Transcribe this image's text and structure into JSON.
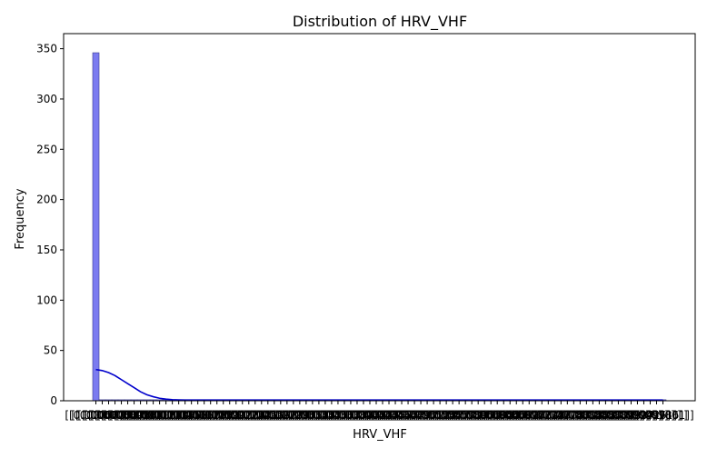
{
  "chart_data": {
    "type": "bar",
    "title": "Distribution of HRV_VHF",
    "xlabel": "HRV_VHF",
    "ylabel": "Frequency",
    "ylim": [
      0,
      365
    ],
    "yticks": [
      0,
      50,
      100,
      150,
      200,
      250,
      300,
      350
    ],
    "categories": [
      "[[0.00066]]",
      "[[0.00071]]",
      "[[0.00075]]",
      "[[0.00082]]",
      "[[0.00087]]",
      "[[0.00092]]",
      "[[0.00098]]",
      "[[0.00104]]",
      "[[0.00111]]",
      "[[0.00118]]",
      "[[0.00124]]",
      "[[0.00131]]",
      "[[0.00139]]",
      "[[0.00145]]",
      "[[0.00152]]",
      "[[0.00160]]",
      "[[0.00167]]",
      "[[0.00175]]",
      "[[0.00183]]",
      "[[0.00191]]",
      "[[0.00199]]",
      "[[0.00207]]",
      "[[0.00216]]",
      "[[0.00224]]",
      "[[0.00233]]",
      "[[0.00241]]",
      "[[0.00250]]",
      "[[0.00259]]",
      "[[0.00268]]",
      "[[0.00277]]",
      "[[0.00286]]",
      "[[0.00295]]",
      "[[0.00305]]",
      "[[0.00314]]",
      "[[0.00324]]",
      "[[0.00333]]",
      "[[0.00343]]",
      "[[0.00353]]",
      "[[0.00363]]",
      "[[0.00373]]",
      "[[0.00383]]",
      "[[0.00393]]",
      "[[0.00404]]",
      "[[0.00414]]",
      "[[0.00425]]",
      "[[0.00435]]",
      "[[0.00446]]",
      "[[0.00457]]",
      "[[0.00468]]",
      "[[0.00479]]",
      "[[0.00490]]",
      "[[0.00501]]",
      "[[0.00513]]",
      "[[0.00524]]",
      "[[0.00536]]",
      "[[0.00547]]",
      "[[0.00559]]",
      "[[0.00571]]",
      "[[0.00583]]",
      "[[0.00595]]",
      "[[0.00607]]",
      "[[0.00619]]",
      "[[0.00632]]",
      "[[0.00644]]",
      "[[0.00657]]",
      "[[0.00669]]",
      "[[0.00682]]",
      "[[0.00695]]",
      "[[0.00708]]",
      "[[0.00721]]",
      "[[0.00734]]",
      "[[0.00747]]",
      "[[0.00760]]",
      "[[0.00774]]",
      "[[0.00787]]",
      "[[0.00801]]",
      "[[0.00814]]",
      "[[0.00828]]",
      "[[0.00842]]",
      "[[0.00856]]",
      "[[0.00870]]",
      "[[0.00884]]",
      "[[0.00898]]",
      "[[0.00913]]",
      "[[0.00927]]",
      "[[0.00942]]",
      "[[0.00956]]",
      "[[0.00971]]",
      "[[0.00986]]",
      "[[0.01001]]"
    ],
    "series": [
      {
        "values": [
          346,
          1,
          1,
          1,
          1,
          1,
          1,
          1,
          1,
          1,
          1,
          1,
          1,
          1,
          1,
          1,
          1,
          1,
          1,
          1,
          1,
          1,
          1,
          1,
          1,
          1,
          1,
          1,
          1,
          1,
          1,
          1,
          1,
          1,
          1,
          1,
          1,
          1,
          1,
          1,
          1,
          1,
          1,
          1,
          1,
          1,
          1,
          1,
          1,
          1,
          1,
          1,
          1,
          1,
          1,
          1,
          1,
          1,
          1,
          1,
          1,
          1,
          1,
          1,
          1,
          1,
          1,
          1,
          1,
          1,
          1,
          1,
          1,
          1,
          1,
          1,
          1,
          1,
          1,
          1,
          1,
          1,
          1,
          1,
          1,
          1,
          1,
          1,
          1,
          1
        ]
      }
    ],
    "kde": [
      31,
      30,
      28,
      25,
      21,
      17,
      13,
      9,
      6,
      4,
      2.5,
      1.6,
      1.1,
      0.9,
      0.8,
      0.8,
      0.8,
      0.8,
      0.8,
      0.8,
      0.8,
      0.8,
      0.8,
      0.8,
      0.8,
      0.8,
      0.8,
      0.8,
      0.8,
      0.8,
      0.8,
      0.8,
      0.8,
      0.8,
      0.8,
      0.8,
      0.8,
      0.8,
      0.8,
      0.8,
      0.8,
      0.8,
      0.8,
      0.8,
      0.8,
      0.8,
      0.8,
      0.8,
      0.8,
      0.8,
      0.8,
      0.8,
      0.8,
      0.8,
      0.8,
      0.8,
      0.8,
      0.8,
      0.8,
      0.8,
      0.8,
      0.8,
      0.8,
      0.8,
      0.8,
      0.8,
      0.8,
      0.8,
      0.8,
      0.8,
      0.8,
      0.8,
      0.8,
      0.8,
      0.8,
      0.8,
      0.8,
      0.8,
      0.8,
      0.8,
      0.8,
      0.8,
      0.8,
      0.8,
      0.8,
      0.8,
      0.8,
      0.8,
      0.8,
      0.8
    ],
    "grid": false,
    "colors": {
      "bar_fill": "#7b7bf0",
      "bar_edge": "#3a3a8a",
      "kde_line": "#0000cc"
    }
  }
}
